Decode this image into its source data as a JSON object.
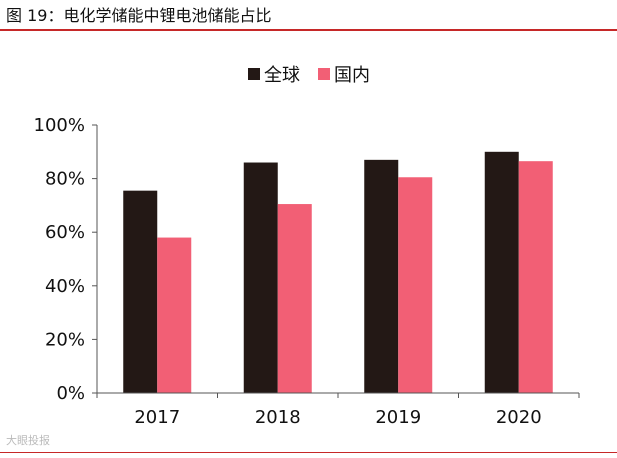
{
  "figure": {
    "title": "图 19：电化学储能中锂电池储能占比",
    "watermark": "大眼投报"
  },
  "chart_data": {
    "type": "bar",
    "title": "图 19：电化学储能中锂电池储能占比",
    "categories": [
      "2017",
      "2018",
      "2019",
      "2020"
    ],
    "series": [
      {
        "name": "全球",
        "values": [
          75.5,
          86,
          87,
          90
        ],
        "color": "#231815"
      },
      {
        "name": "国内",
        "values": [
          58,
          70.5,
          80.5,
          86.5
        ],
        "color": "#f25f75"
      }
    ],
    "y_ticks": [
      "0%",
      "20%",
      "40%",
      "60%",
      "80%",
      "100%"
    ],
    "ylim": [
      0,
      100
    ],
    "xlabel": "",
    "ylabel": "",
    "grid": false,
    "legend_position": "top-center"
  }
}
